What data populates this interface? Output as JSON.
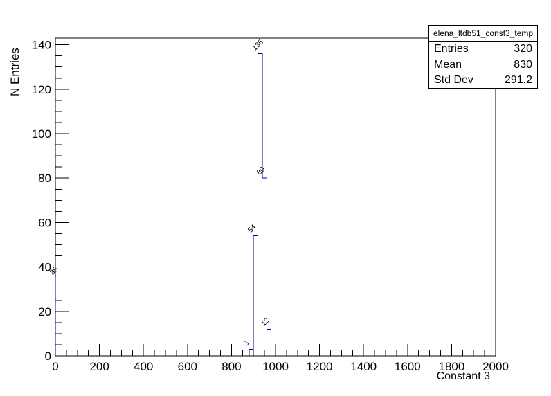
{
  "canvas": {
    "background": "#ffffff"
  },
  "stats_box": {
    "title": "elena_ltdb51_const3_temp",
    "rows": [
      {
        "label": "Entries",
        "value": "320"
      },
      {
        "label": "Mean",
        "value": "830"
      },
      {
        "label": "Std Dev",
        "value": "291.2"
      }
    ]
  },
  "chart_data": {
    "type": "bar",
    "style": "root-histogram-outline",
    "title": "elena_ltdb51_const3_temp",
    "xlabel": "Constant 3",
    "ylabel": "N Entries",
    "xlim": [
      0,
      2000
    ],
    "ylim": [
      0,
      143
    ],
    "x_major_step": 200,
    "x_minor_step": 50,
    "y_major_step": 20,
    "y_minor_step": 5,
    "x_tick_labels": [
      "0",
      "200",
      "400",
      "600",
      "800",
      "1000",
      "1200",
      "1400",
      "1600",
      "1800",
      "2000"
    ],
    "y_tick_labels": [
      "0",
      "20",
      "40",
      "60",
      "80",
      "100",
      "120",
      "140"
    ],
    "line_color": "#000099",
    "axis_color": "#000000",
    "grid": false,
    "legend": false,
    "bins": [
      {
        "x_low": 0,
        "x_high": 20,
        "count": 35,
        "label": "35"
      },
      {
        "x_low": 880,
        "x_high": 900,
        "count": 3,
        "label": "3"
      },
      {
        "x_low": 900,
        "x_high": 920,
        "count": 54,
        "label": "54"
      },
      {
        "x_low": 920,
        "x_high": 940,
        "count": 136,
        "label": "136"
      },
      {
        "x_low": 940,
        "x_high": 960,
        "count": 80,
        "label": "80"
      },
      {
        "x_low": 960,
        "x_high": 980,
        "count": 12,
        "label": "12"
      }
    ],
    "stats": {
      "entries": 320,
      "mean": 830,
      "std_dev": 291.2
    }
  }
}
